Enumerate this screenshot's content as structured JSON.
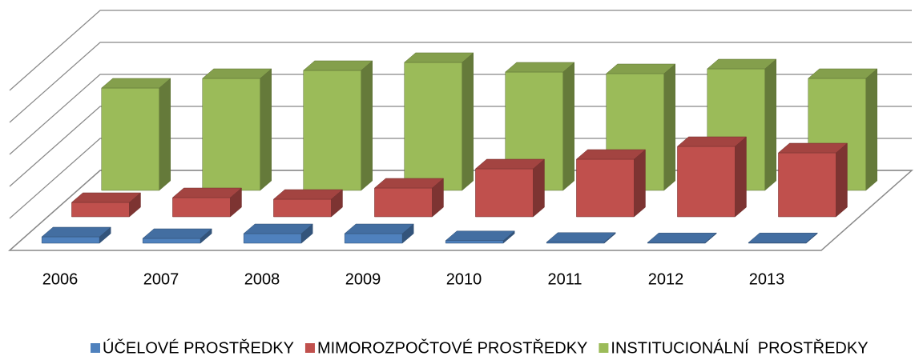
{
  "chart_data": {
    "type": "bar3d",
    "categories": [
      "2006",
      "2007",
      "2008",
      "2009",
      "2010",
      "2011",
      "2012",
      "2013"
    ],
    "series": [
      {
        "name": "ÚČELOVÉ PROSTŘEDKY",
        "color": "#4f81bd",
        "values": [
          0.2,
          0.15,
          0.3,
          0.3,
          0.08,
          0.03,
          0.02,
          0.02
        ]
      },
      {
        "name": "MIMOROZPOČTOVÉ PROSTŘEDKY",
        "color": "#c0504d",
        "values": [
          0.45,
          0.6,
          0.55,
          0.9,
          1.5,
          1.8,
          2.2,
          2.0
        ]
      },
      {
        "name": "INSTITUCIONÁLNÍ  PROSTŘEDKY",
        "color": "#9bbb59",
        "values": [
          3.2,
          3.5,
          3.75,
          4.0,
          3.7,
          3.65,
          3.8,
          3.5
        ]
      }
    ],
    "ylim": [
      0,
      5
    ],
    "yticks": [
      0,
      1,
      2,
      3,
      4,
      5
    ],
    "grid": true,
    "legend": "bottom"
  }
}
